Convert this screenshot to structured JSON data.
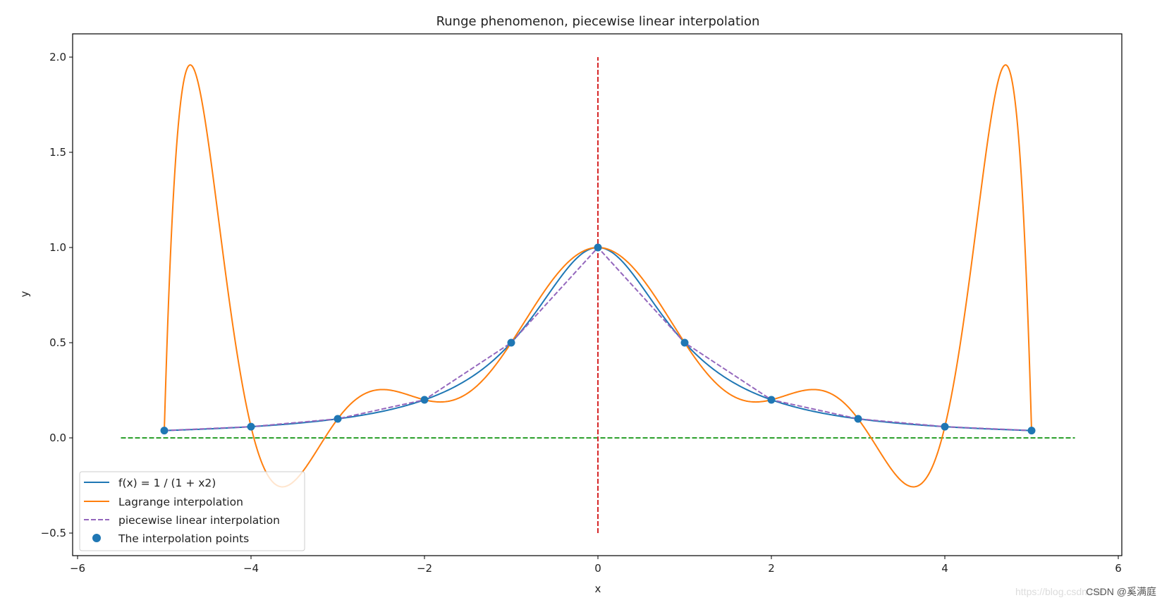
{
  "chart_data": {
    "type": "line",
    "title": "Runge phenomenon, piecewise linear interpolation",
    "xlabel": "x",
    "ylabel": "y",
    "xlim": [
      -6,
      6
    ],
    "ylim": [
      -0.63,
      2.13
    ],
    "xticks": [
      -6,
      -4,
      -2,
      0,
      2,
      4,
      6
    ],
    "xtick_labels": [
      "−6",
      "−4",
      "−2",
      "0",
      "2",
      "4",
      "6"
    ],
    "yticks": [
      -0.5,
      0.0,
      0.5,
      1.0,
      1.5,
      2.0
    ],
    "ytick_labels": [
      "−0.5",
      "0.0",
      "0.5",
      "1.0",
      "1.5",
      "2.0"
    ],
    "grid": false,
    "legend_placement": "lower-left",
    "interpolation_points": {
      "x": [
        -5,
        -4,
        -3,
        -2,
        -1,
        0,
        1,
        2,
        3,
        4,
        5
      ],
      "y": [
        0.0385,
        0.0588,
        0.1,
        0.2,
        0.5,
        1.0,
        0.5,
        0.2,
        0.1,
        0.0588,
        0.0385
      ]
    },
    "series": [
      {
        "name": "f(x) = 1 / (1 + x2)",
        "kind": "function",
        "expression": "1/(1+x^2)",
        "x_range": [
          -5,
          5
        ],
        "color": "#1f77b4",
        "style": "solid"
      },
      {
        "name": "Lagrange interpolation",
        "kind": "lagrange-of-points",
        "x_range": [
          -5,
          5
        ],
        "color": "#ff7f0e",
        "style": "solid"
      },
      {
        "name": "piecewise linear interpolation",
        "kind": "polyline-of-points",
        "color": "#9467bd",
        "style": "dashed"
      },
      {
        "name": "The interpolation points",
        "kind": "scatter",
        "color": "#1f77b4"
      }
    ],
    "reference_lines": [
      {
        "orientation": "horizontal",
        "y": 0,
        "x_range": [
          -5.5,
          5.5
        ],
        "color": "#2ca02c",
        "style": "dashed"
      },
      {
        "orientation": "vertical",
        "x": 0,
        "y_range": [
          -0.5,
          2.0
        ],
        "color": "#d62728",
        "style": "dashed"
      }
    ]
  },
  "watermark": {
    "url_text": "https://blog.csdn.net",
    "label": "CSDN @奚满庭"
  }
}
